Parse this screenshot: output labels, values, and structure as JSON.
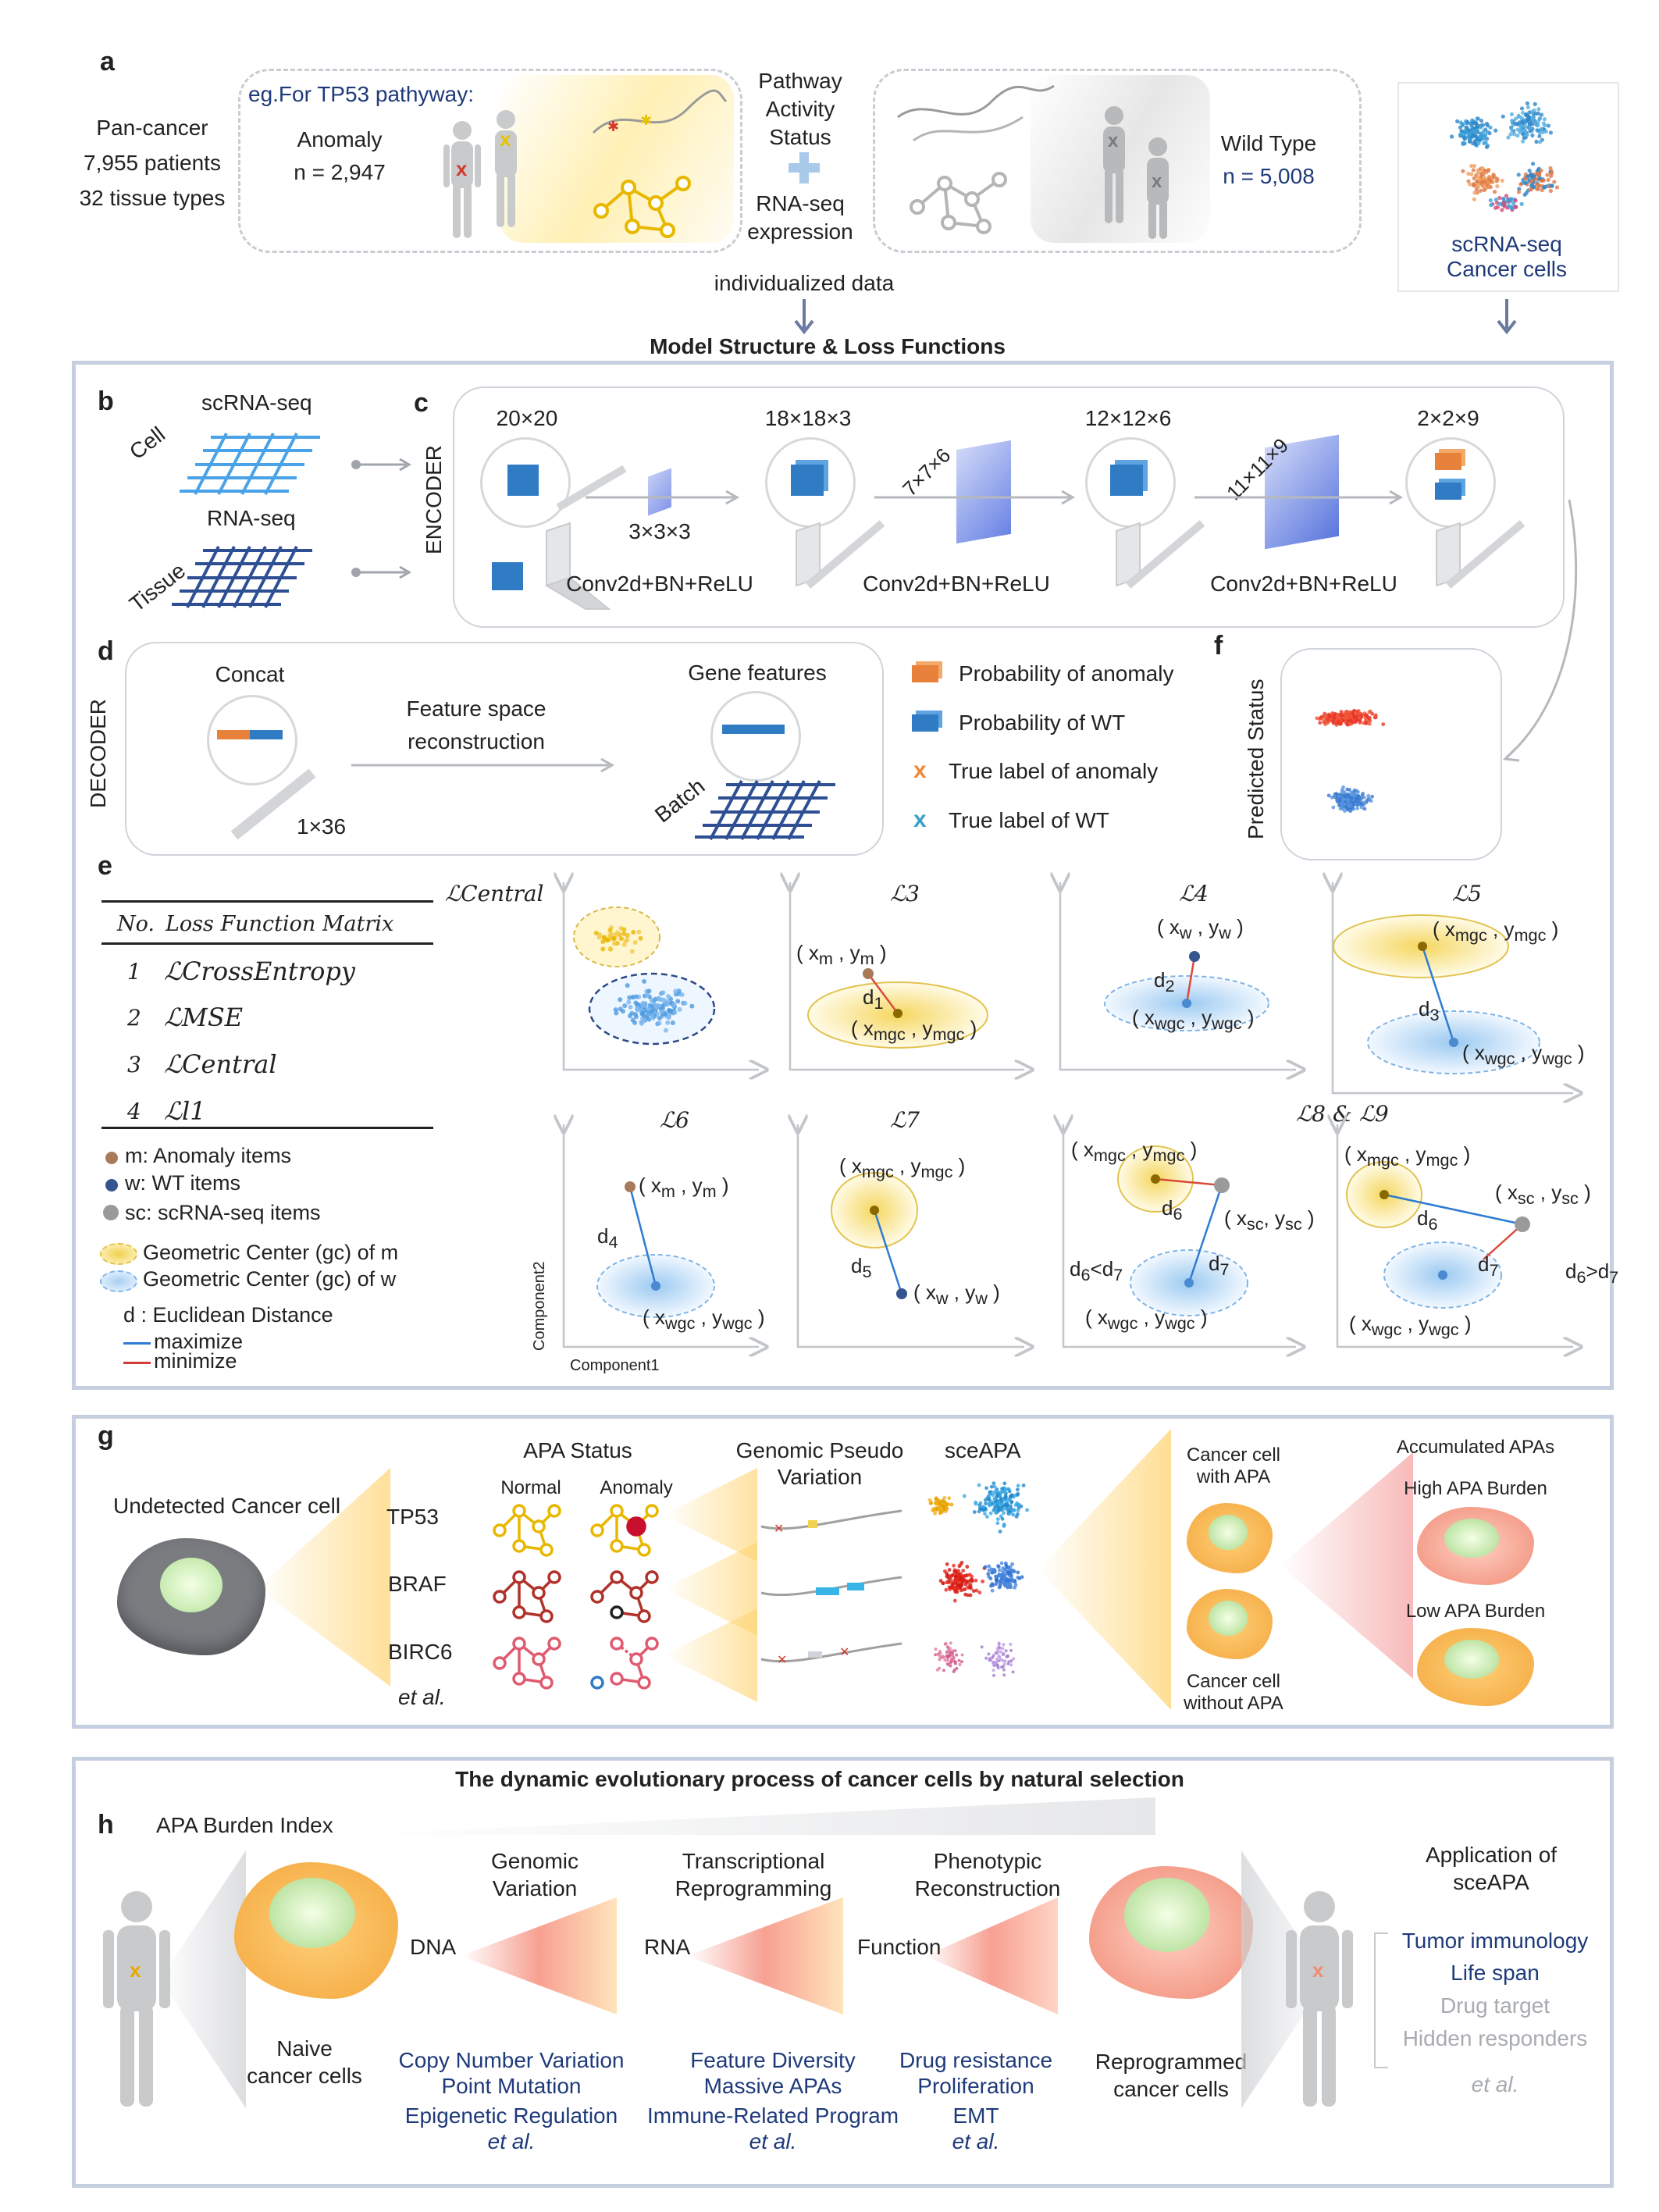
{
  "panel_a": {
    "label": "a",
    "cohort": [
      "Pan-cancer",
      "7,955 patients",
      "32 tissue types"
    ],
    "example_title": "eg.For TP53 pathyway:",
    "anomaly_label": "Anomaly",
    "anomaly_n": "n = 2,947",
    "pathway_status": [
      "Pathway",
      "Activity",
      "Status"
    ],
    "rnaseq_expression": [
      "RNA-seq",
      "expression"
    ],
    "wild_type_label": "Wild Type",
    "wild_type_n": "n = 5,008",
    "scrna_title": [
      "scRNA-seq",
      "Cancer cells"
    ],
    "individualized_data": "individualized data"
  },
  "model_title": "Model Structure & Loss Functions",
  "panel_b": {
    "label": "b",
    "scrna": "scRNA-seq",
    "cell": "Cell",
    "rnaseq": "RNA-seq",
    "tissue": "Tissue"
  },
  "panel_c": {
    "label": "c",
    "encoder": "ENCODER",
    "sizes": [
      "20×20",
      "18×18×3",
      "12×12×6",
      "2×2×9"
    ],
    "kernel": "3×3×3",
    "kernel2": "7×7×6",
    "kernel3": "11×11×9",
    "layer": "Conv2d+BN+ReLU"
  },
  "panel_d": {
    "label": "d",
    "decoder": "DECODER",
    "concat": "Concat",
    "reconstruction": [
      "Feature space",
      "reconstruction"
    ],
    "gene_features": "Gene features",
    "batch": "Batch",
    "dim": "1×36"
  },
  "legend_probs": [
    {
      "text": "Probability of anomaly",
      "color": "#e8813a"
    },
    {
      "text": "Probability of WT",
      "color": "#2f7bc4"
    },
    {
      "text": "True label of anomaly",
      "color": "#ef8a3a"
    },
    {
      "text": "True label of WT",
      "color": "#3aa0c9"
    }
  ],
  "panel_f": {
    "label": "f",
    "predicted": "Predicted Status"
  },
  "panel_e": {
    "label": "e",
    "table_header": [
      "No.",
      "Loss Function Matrix"
    ],
    "rows": [
      {
        "no": "1",
        "name": "ℒCrossEntropy"
      },
      {
        "no": "2",
        "name": "ℒMSE"
      },
      {
        "no": "3",
        "name": "ℒCentral"
      },
      {
        "no": "4",
        "name": "ℒl1"
      }
    ],
    "legend": [
      "m: Anomaly items",
      "w: WT items",
      "sc: scRNA-seq items",
      "Geometric Center (gc) of m",
      "Geometric Center (gc) of w",
      "d : Euclidean Distance",
      "maximize",
      "minimize"
    ],
    "plot_titles": [
      "ℒCentral",
      "ℒ3",
      "ℒ4",
      "ℒ5",
      "ℒ6",
      "ℒ7",
      "ℒ8 & ℒ9"
    ],
    "axis_x": "Component1",
    "axis_y": "Component2"
  },
  "panel_g": {
    "label": "g",
    "undetected": "Undetected Cancer cell",
    "apa_status": "APA Status",
    "normal": "Normal",
    "anomaly": "Anomaly",
    "genes": [
      "TP53",
      "BRAF",
      "BIRC6",
      "et al."
    ],
    "genomic_pseudo": [
      "Genomic Pseudo",
      "Variation"
    ],
    "sceapa": "sceAPA",
    "with_apa": [
      "Cancer cell",
      "with APA"
    ],
    "without_apa": [
      "Cancer cell",
      "without APA"
    ],
    "accumulated": "Accumulated APAs",
    "high_burden": "High APA Burden",
    "low_burden": "Low APA Burden"
  },
  "panel_h": {
    "label": "h",
    "title": "The dynamic evolutionary process of cancer cells by natural selection",
    "burden_index": "APA Burden Index",
    "genomic_variation": [
      "Genomic",
      "Variation"
    ],
    "transcriptional": [
      "Transcriptional",
      "Reprogramming"
    ],
    "phenotypic": [
      "Phenotypic",
      "Reconstruction"
    ],
    "dna": "DNA",
    "rna": "RNA",
    "function": "Function",
    "naive": [
      "Naive",
      "cancer cells"
    ],
    "reprogrammed": [
      "Reprogrammed",
      "cancer cells"
    ],
    "col1": [
      "Copy Number Variation",
      "Point Mutation",
      "Epigenetic Regulation",
      "et al."
    ],
    "col2": [
      "Feature Diversity",
      "Massive APAs",
      "Immune-Related Program",
      "et al."
    ],
    "col3": [
      "Drug resistance",
      "Proliferation",
      "EMT",
      "et al."
    ],
    "application_title": [
      "Application of",
      "sceAPA"
    ],
    "applications": [
      "Tumor immunology",
      "Life span",
      "Drug target",
      "Hidden responders",
      "et al."
    ]
  }
}
